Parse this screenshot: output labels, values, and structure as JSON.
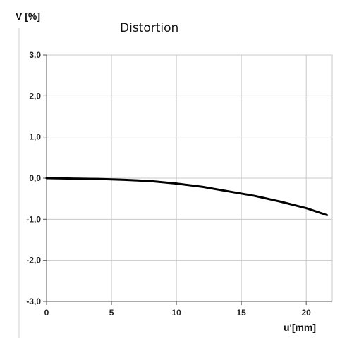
{
  "chart_data": {
    "type": "line",
    "title": "Distortion",
    "ylabel": "V [%]",
    "xlabel": "u'[mm]",
    "xlim": [
      0,
      22
    ],
    "ylim": [
      -3.0,
      3.0
    ],
    "x_ticks": [
      0,
      5,
      10,
      15,
      20
    ],
    "x_tick_labels": [
      "0",
      "5",
      "10",
      "15",
      "20"
    ],
    "y_ticks": [
      3.0,
      2.0,
      1.0,
      0.0,
      -1.0,
      -2.0,
      -3.0
    ],
    "y_tick_labels": [
      "3,0",
      "2,0",
      "1,0",
      "0,0",
      "-1,0",
      "-2,0",
      "-3,0"
    ],
    "grid": true,
    "series": [
      {
        "color": "#000000",
        "x": [
          0,
          2,
          4,
          6,
          8,
          10,
          12,
          14,
          16,
          18,
          20,
          21.6
        ],
        "y": [
          0.0,
          -0.01,
          -0.02,
          -0.04,
          -0.07,
          -0.13,
          -0.21,
          -0.32,
          -0.43,
          -0.57,
          -0.73,
          -0.9
        ]
      }
    ]
  }
}
